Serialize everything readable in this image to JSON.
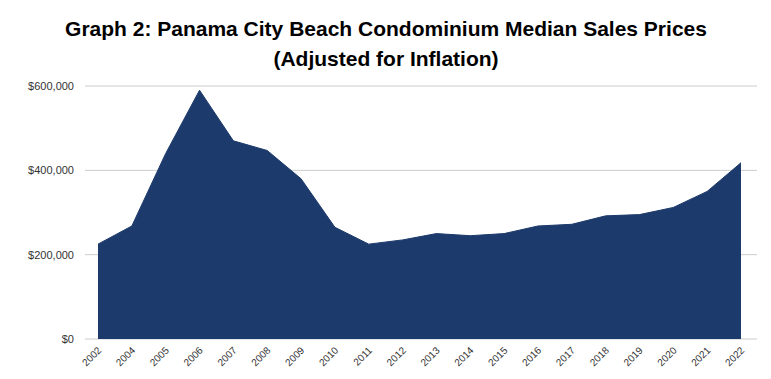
{
  "chart_data": {
    "type": "area",
    "title": "Graph 2: Panama City Beach Condominium Median Sales Prices",
    "subtitle": "(Adjusted for Inflation)",
    "categories": [
      "2002",
      "2004",
      "2005",
      "2006",
      "2007",
      "2008",
      "2009",
      "2010",
      "2011",
      "2012",
      "2013",
      "2014",
      "2015",
      "2016",
      "2017",
      "2018",
      "2019",
      "2020",
      "2021",
      "2022"
    ],
    "values": [
      225000,
      268000,
      440000,
      590000,
      470000,
      447000,
      380000,
      265000,
      225000,
      235000,
      250000,
      245000,
      250000,
      268000,
      272000,
      292000,
      295000,
      312000,
      350000,
      418000
    ],
    "color": "#1c3a6b",
    "ylim": [
      0,
      600000
    ],
    "yticks": [
      {
        "value": 0,
        "label": "$0"
      },
      {
        "value": 200000,
        "label": "$200,000"
      },
      {
        "value": 400000,
        "label": "$400,000"
      },
      {
        "value": 600000,
        "label": "$600,000"
      }
    ],
    "grid": true
  }
}
